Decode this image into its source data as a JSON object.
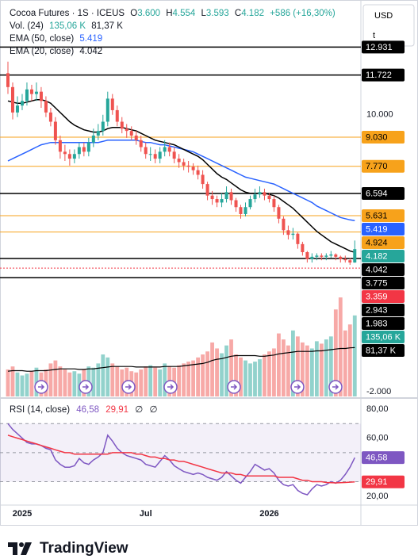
{
  "header": {
    "symbol": "Cocoa Futures · 1S · ICEUS",
    "ohlc": [
      {
        "key": "O",
        "value": "3.600"
      },
      {
        "key": "H",
        "value": "4.554"
      },
      {
        "key": "L",
        "value": "3.593"
      },
      {
        "key": "C",
        "value": "4.182"
      }
    ],
    "change": "+586 (+16,30%)",
    "currency": "USD",
    "unit": "t",
    "brand": "TradingView"
  },
  "chart_data": [
    {
      "type": "candlestick",
      "up_color": "#26a69a",
      "down_color": "#ef5350",
      "categories": [
        null,
        null,
        null,
        "2025",
        null,
        null,
        null,
        null,
        null,
        null,
        null,
        null,
        null,
        null,
        null,
        null,
        null,
        null,
        null,
        null,
        null,
        null,
        null,
        null,
        null,
        null,
        null,
        null,
        null,
        "Jul",
        null,
        null,
        null,
        null,
        null,
        null,
        null,
        null,
        null,
        null,
        null,
        null,
        null,
        null,
        null,
        null,
        null,
        null,
        null,
        null,
        null,
        null,
        null,
        null,
        null,
        "2026",
        null,
        null,
        null,
        null,
        null,
        null,
        null,
        null,
        null,
        null,
        null,
        null,
        null,
        null,
        null,
        null,
        null,
        null
      ],
      "open": [
        11.8,
        11.2,
        10.1,
        10.4,
        10.6,
        11.1,
        10.9,
        11.0,
        10.6,
        10.1,
        9.7,
        8.9,
        8.4,
        8.3,
        8.1,
        8.3,
        8.6,
        8.4,
        8.8,
        9.1,
        9.3,
        9.7,
        10.7,
        10.2,
        9.7,
        9.4,
        9.3,
        9.1,
        8.9,
        8.6,
        8.3,
        8.3,
        8.1,
        8.4,
        8.6,
        8.4,
        8.1,
        7.95,
        7.8,
        7.75,
        7.6,
        7.4,
        7.0,
        6.5,
        6.35,
        6.2,
        6.35,
        6.65,
        6.3,
        6.0,
        5.7,
        6.0,
        6.35,
        6.55,
        6.65,
        6.5,
        6.35,
        6.0,
        5.5,
        5.0,
        4.8,
        4.85,
        4.4,
        4.05,
        3.75,
        3.85,
        3.9,
        3.85,
        3.9,
        3.95,
        3.85,
        3.75,
        3.7,
        3.6
      ],
      "high": [
        12.3,
        11.4,
        10.8,
        10.9,
        11.4,
        11.3,
        11.4,
        11.2,
        10.8,
        10.3,
        9.9,
        9.1,
        8.7,
        8.5,
        8.5,
        8.8,
        8.8,
        9.0,
        9.4,
        9.6,
        10.0,
        11.0,
        10.9,
        10.4,
        9.9,
        9.6,
        9.5,
        9.3,
        9.1,
        8.8,
        8.6,
        8.5,
        8.6,
        8.9,
        8.8,
        8.6,
        8.3,
        8.1,
        8.0,
        7.9,
        7.8,
        7.6,
        7.1,
        6.7,
        6.5,
        6.6,
        6.9,
        6.8,
        6.4,
        6.1,
        6.2,
        6.5,
        6.8,
        6.9,
        6.8,
        6.6,
        6.5,
        6.1,
        5.6,
        5.2,
        5.1,
        4.9,
        4.5,
        4.1,
        4.0,
        4.0,
        4.0,
        4.0,
        4.1,
        4.0,
        3.9,
        3.9,
        3.8,
        4.554
      ],
      "low": [
        10.9,
        9.8,
        9.9,
        10.2,
        10.4,
        10.6,
        10.6,
        10.3,
        9.9,
        9.5,
        8.7,
        8.1,
        8.0,
        7.8,
        7.9,
        8.1,
        8.2,
        8.2,
        8.6,
        8.9,
        9.1,
        9.5,
        10.0,
        9.5,
        9.2,
        9.0,
        8.9,
        8.7,
        8.4,
        8.1,
        8.0,
        7.9,
        7.9,
        8.2,
        8.2,
        7.9,
        7.7,
        7.6,
        7.5,
        7.4,
        7.2,
        6.8,
        6.3,
        6.1,
        6.0,
        6.0,
        6.2,
        6.1,
        5.8,
        5.5,
        5.6,
        5.9,
        6.2,
        6.4,
        6.3,
        6.2,
        5.8,
        5.3,
        4.8,
        4.6,
        4.6,
        4.2,
        3.9,
        3.6,
        3.6,
        3.7,
        3.7,
        3.7,
        3.8,
        3.7,
        3.6,
        3.6,
        3.5,
        3.593
      ],
      "close": [
        11.2,
        10.1,
        10.4,
        10.6,
        11.1,
        10.9,
        11.0,
        10.6,
        10.1,
        9.7,
        8.9,
        8.4,
        8.3,
        8.1,
        8.3,
        8.6,
        8.4,
        8.8,
        9.1,
        9.3,
        9.7,
        10.7,
        10.2,
        9.7,
        9.4,
        9.3,
        9.1,
        8.9,
        8.6,
        8.3,
        8.3,
        8.1,
        8.4,
        8.6,
        8.4,
        8.1,
        7.95,
        7.8,
        7.75,
        7.6,
        7.4,
        7.0,
        6.5,
        6.35,
        6.2,
        6.35,
        6.65,
        6.3,
        6.0,
        5.7,
        6.0,
        6.35,
        6.55,
        6.65,
        6.5,
        6.35,
        6.0,
        5.5,
        5.0,
        4.8,
        4.85,
        4.4,
        4.05,
        3.75,
        3.85,
        3.9,
        3.85,
        3.9,
        3.95,
        3.85,
        3.75,
        3.7,
        3.6,
        4.182
      ],
      "series": [
        {
          "name": "EMA (50, close)",
          "color": "#2962ff",
          "values": [
            8.0,
            8.1,
            8.2,
            8.3,
            8.4,
            8.5,
            8.6,
            8.7,
            8.75,
            8.8,
            8.8,
            8.8,
            8.8,
            8.8,
            8.8,
            8.8,
            8.8,
            8.8,
            8.8,
            8.8,
            8.85,
            8.9,
            8.9,
            8.9,
            8.9,
            8.9,
            8.9,
            8.9,
            8.85,
            8.8,
            8.8,
            8.75,
            8.7,
            8.7,
            8.65,
            8.6,
            8.55,
            8.5,
            8.45,
            8.4,
            8.3,
            8.2,
            8.1,
            8.0,
            7.9,
            7.8,
            7.7,
            7.6,
            7.5,
            7.4,
            7.3,
            7.25,
            7.2,
            7.15,
            7.1,
            7.05,
            7.0,
            6.9,
            6.8,
            6.7,
            6.6,
            6.5,
            6.4,
            6.3,
            6.2,
            6.05,
            5.95,
            5.85,
            5.75,
            5.65,
            5.55,
            5.5,
            5.45,
            5.419
          ]
        },
        {
          "name": "EMA (20, close)",
          "color": "#000000",
          "values": [
            10.6,
            10.55,
            10.5,
            10.5,
            10.55,
            10.6,
            10.65,
            10.65,
            10.6,
            10.5,
            10.3,
            10.1,
            9.9,
            9.7,
            9.55,
            9.45,
            9.35,
            9.3,
            9.25,
            9.25,
            9.3,
            9.4,
            9.45,
            9.45,
            9.45,
            9.4,
            9.35,
            9.3,
            9.2,
            9.1,
            9.0,
            8.9,
            8.85,
            8.8,
            8.75,
            8.7,
            8.6,
            8.5,
            8.4,
            8.3,
            8.2,
            8.05,
            7.85,
            7.65,
            7.45,
            7.3,
            7.2,
            7.05,
            6.9,
            6.75,
            6.65,
            6.6,
            6.6,
            6.6,
            6.6,
            6.55,
            6.5,
            6.4,
            6.25,
            6.1,
            5.95,
            5.75,
            5.55,
            5.35,
            5.15,
            4.95,
            4.8,
            4.65,
            4.5,
            4.4,
            4.3,
            4.2,
            4.1,
            4.042
          ]
        }
      ],
      "levels": [
        {
          "value": 12.931,
          "label": "12.931",
          "color": "#000000",
          "label_color": "#ffffff",
          "style": "solid"
        },
        {
          "value": 11.722,
          "label": "11.722",
          "color": "#000000",
          "label_color": "#ffffff",
          "style": "solid"
        },
        {
          "value": 9.03,
          "label": "9.030",
          "color": "#f7a21b",
          "label_color": "#000000",
          "style": "solid"
        },
        {
          "value": 7.77,
          "label": "7.770",
          "color": "#f7a21b",
          "label_color": "#000000",
          "style": "solid"
        },
        {
          "value": 6.594,
          "label": "6.594",
          "color": "#000000",
          "label_color": "#ffffff",
          "style": "solid"
        },
        {
          "value": 5.631,
          "label": "5.631",
          "color": "#f7a21b",
          "label_color": "#000000",
          "style": "solid"
        },
        {
          "value": 4.924,
          "label": "4.924",
          "color": "#f7a21b",
          "label_color": "#000000",
          "style": "solid"
        },
        {
          "value": 3.775,
          "label": "3.775",
          "color": "#000000",
          "label_color": "#ffffff",
          "style": "solid"
        },
        {
          "value": 3.359,
          "label": "3.359",
          "color": "#f23645",
          "label_color": "#ffffff",
          "style": "dotted"
        },
        {
          "value": 2.943,
          "label": "2.943",
          "color": "#000000",
          "label_color": "#ffffff",
          "style": "solid"
        },
        {
          "value": 1.983,
          "label": "1.983",
          "color": "#000000",
          "label_color": "#ffffff",
          "style": "none"
        }
      ],
      "ylim": [
        -2.2,
        14.8
      ],
      "yticks": [
        {
          "value": 10,
          "label": "10.000"
        },
        {
          "value": -2,
          "label": "-2.000"
        }
      ]
    },
    {
      "type": "bar",
      "title": "Vol. (24)",
      "up_color": "rgba(38,166,154,0.5)",
      "down_color": "rgba(239,83,80,0.5)",
      "label_color": "#26a69a",
      "values": [
        45,
        50,
        40,
        35,
        38,
        42,
        48,
        40,
        45,
        55,
        60,
        50,
        45,
        40,
        42,
        38,
        45,
        50,
        48,
        55,
        70,
        65,
        55,
        50,
        45,
        48,
        42,
        40,
        45,
        50,
        52,
        48,
        45,
        55,
        50,
        48,
        52,
        55,
        58,
        60,
        65,
        70,
        75,
        90,
        80,
        72,
        85,
        95,
        70,
        65,
        60,
        55,
        58,
        62,
        70,
        75,
        80,
        105,
        95,
        85,
        110,
        100,
        90,
        85,
        80,
        92,
        88,
        95,
        100,
        145,
        165,
        110,
        120,
        135.06
      ],
      "value_label": "135,06 K",
      "ma": {
        "color": "#000000",
        "value_label": "81,37 K",
        "values": [
          42,
          43,
          43,
          43,
          42,
          42,
          43,
          43,
          43,
          44,
          45,
          46,
          46,
          46,
          46,
          45,
          45,
          46,
          46,
          47,
          48,
          49,
          50,
          50,
          50,
          50,
          50,
          49,
          49,
          49,
          49,
          49,
          49,
          50,
          50,
          50,
          50,
          51,
          52,
          53,
          54,
          55,
          57,
          60,
          62,
          63,
          65,
          67,
          68,
          68,
          68,
          68,
          68,
          67,
          67,
          68,
          69,
          71,
          72,
          73,
          74,
          75,
          75,
          75,
          75,
          76,
          76,
          77,
          78,
          79,
          80,
          80,
          81,
          81.37
        ]
      },
      "ylim": [
        0,
        185
      ]
    },
    {
      "type": "line",
      "title": "RSI (14, close)",
      "na_labels": [
        "∅",
        "∅"
      ],
      "series": [
        {
          "color": "#7e57c2",
          "value_label": "46,58",
          "values": [
            70,
            66,
            63,
            60,
            57,
            56,
            56,
            55,
            53,
            52,
            45,
            42,
            40,
            40,
            41,
            46,
            43,
            42,
            45,
            47,
            50,
            62,
            58,
            53,
            50,
            48,
            47,
            46,
            45,
            42,
            41,
            40,
            44,
            48,
            45,
            41,
            39,
            37,
            36,
            35,
            36,
            35,
            33,
            32,
            31,
            33,
            37,
            34,
            31,
            29,
            33,
            37,
            42,
            40,
            38,
            39,
            36,
            31,
            28,
            27,
            28,
            24,
            22,
            21,
            25,
            28,
            27,
            28,
            30,
            29,
            31,
            35,
            40,
            46.58
          ]
        },
        {
          "color": "#f23645",
          "value_label": "29,91",
          "values": [
            62,
            61,
            60,
            59,
            58,
            57,
            56,
            55,
            54,
            53,
            52,
            51,
            50,
            50,
            49,
            49,
            49,
            49,
            49,
            49,
            49,
            49,
            50,
            50,
            50,
            50,
            50,
            49,
            49,
            48,
            47,
            47,
            46,
            46,
            45,
            45,
            44,
            44,
            43,
            42,
            41,
            40,
            39,
            38,
            37,
            36,
            36,
            36,
            35,
            35,
            34,
            34,
            34,
            34,
            34,
            34,
            34,
            33,
            33,
            33,
            33,
            32,
            31,
            31,
            30,
            30,
            30,
            29.5,
            29.3,
            29.2,
            29.3,
            29.5,
            29.7,
            29.91
          ]
        }
      ],
      "band": [
        30,
        70
      ],
      "hlines": [
        70,
        50,
        30
      ],
      "ylim": [
        15,
        86
      ],
      "yticks": [
        {
          "value": 80,
          "label": "80,00"
        },
        {
          "value": 60,
          "label": "60,00"
        },
        {
          "value": 20,
          "label": "20,00"
        }
      ]
    }
  ]
}
